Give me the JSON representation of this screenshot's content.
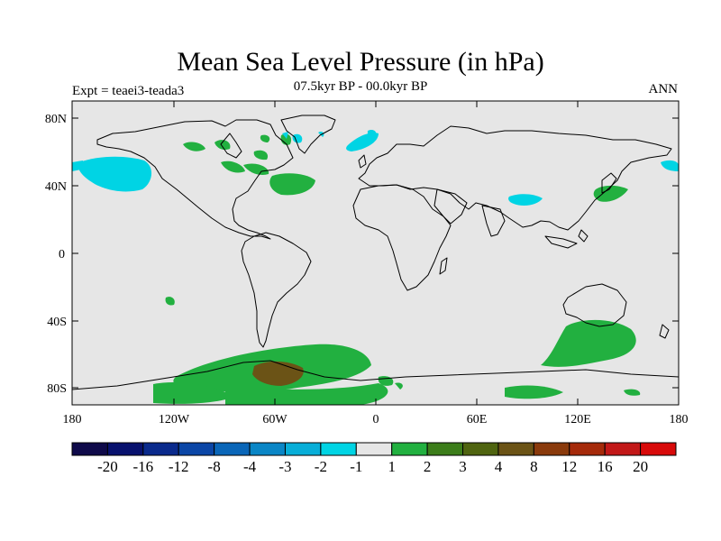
{
  "title": "Mean Sea Level Pressure (in hPa)",
  "subtitle": "07.5kyr BP - 00.0kyr BP",
  "left_label": "Expt = teaei3-teada3",
  "right_label": "ANN",
  "colors": {
    "background_ocean_land": "#e6e6e6",
    "coastline": "#000000",
    "positive_1_2": "#22b040",
    "positive_4_8": "#6b5316",
    "negative_1_2": "#00d4e4"
  },
  "map": {
    "projection": "cylindrical-equidistant",
    "lat_range": [
      -90,
      90
    ],
    "lon_range": [
      -180,
      180
    ],
    "lat_ticks": [
      "80N",
      "40N",
      "0",
      "40S",
      "80S"
    ],
    "lon_ticks": [
      "180",
      "120W",
      "60W",
      "0",
      "60E",
      "120E",
      "180"
    ]
  },
  "colorbar": {
    "colors": [
      "#0f0a4a",
      "#08116e",
      "#0a2a8c",
      "#0b46a6",
      "#0a66b8",
      "#0a86c6",
      "#08aed8",
      "#00d4e4",
      "#e6e6e6",
      "#22b040",
      "#3c7d1a",
      "#4f6410",
      "#6b5316",
      "#8a3a0c",
      "#a52a0a",
      "#c21818",
      "#d80a0a"
    ],
    "labels": [
      "-20",
      "-16",
      "-12",
      "-8",
      "-4",
      "-3",
      "-2",
      "-1",
      "1",
      "2",
      "3",
      "4",
      "8",
      "12",
      "16",
      "20"
    ]
  }
}
